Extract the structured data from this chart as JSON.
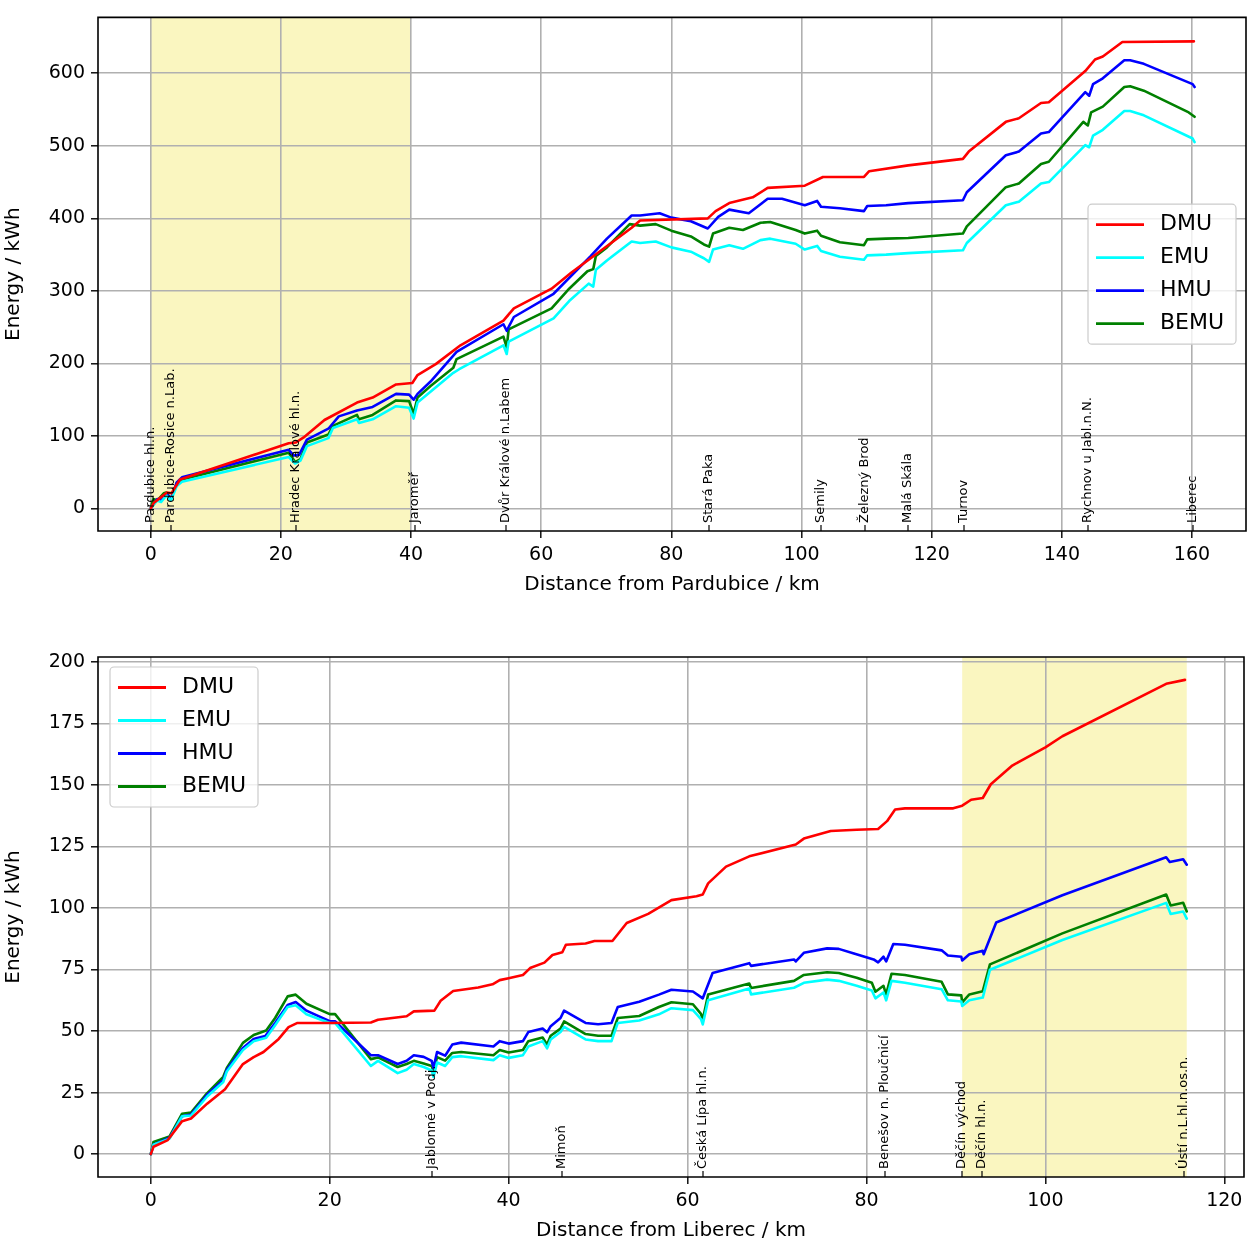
{
  "chart_data": [
    {
      "type": "line",
      "xlabel": "Distance from Pardubice / km",
      "ylabel": "Energy / kWh",
      "xlim": [
        -8.1,
        168.3
      ],
      "ylim": [
        -31,
        677
      ],
      "xticks": [
        0,
        20,
        40,
        60,
        80,
        100,
        120,
        140,
        160
      ],
      "yticks": [
        0,
        100,
        200,
        300,
        400,
        500,
        600
      ],
      "grid": true,
      "legend": "center right",
      "bands": [
        {
          "axis": "x",
          "from": 0,
          "to": 40,
          "color": "#faf6c0"
        }
      ],
      "annotations": [
        "Pardubice hl.n.",
        "Pardubice-Rosice n.Lab.",
        "Hradec Králové hl.n.",
        "Jaroměř",
        "Dvůr Králové n.Labem",
        "Stará Paka",
        "Semily",
        "Železný Brod",
        "Malá Skála",
        "Turnov",
        "Rychnov u Jabl.n.N.",
        "Liberec"
      ],
      "series": [
        {
          "name": "DMU",
          "color": "#ff0000",
          "x": [
            0,
            0.5,
            1.5,
            2.5,
            3.2,
            4.5,
            21.2,
            22.3,
            23.5,
            26.7,
            31.7,
            34.1,
            37.7,
            40.2,
            41,
            43.8,
            47.6,
            54.2,
            55.8,
            61.6,
            64.6,
            73.9,
            75.2,
            85.6,
            86.8,
            88.9,
            92.5,
            94.8,
            100.5,
            103.3,
            109.6,
            110.4,
            116.4,
            124.8,
            125.7,
            131.4,
            133.4,
            136.8,
            138,
            143.6,
            145.1,
            146.3,
            149.3,
            160.3
          ],
          "values": [
            0,
            8,
            15,
            22,
            21,
            40,
            90,
            91,
            98,
            122,
            146,
            153,
            171,
            173,
            184,
            199,
            225,
            259,
            276,
            303,
            325,
            387,
            397,
            400,
            410,
            421,
            429,
            442,
            445,
            457,
            457,
            465,
            473,
            482,
            492,
            533,
            538,
            559,
            560,
            603,
            619,
            623,
            643,
            644
          ]
        },
        {
          "name": "EMU",
          "color": "#00ffff",
          "x": [
            0,
            1,
            1.6,
            2.4,
            3.1,
            4,
            4.8,
            21.2,
            22.2,
            23,
            24,
            27.3,
            28,
            31.7,
            32,
            34.1,
            37.7,
            39.7,
            40.4,
            41,
            46.5,
            47.4,
            54.2,
            54.7,
            55,
            61.9,
            64.3,
            67.3,
            68,
            68.4,
            70.1,
            73.9,
            75.2,
            77.6,
            80,
            83,
            85,
            85.8,
            86.4,
            88.9,
            91,
            93.7,
            95.2,
            99.1,
            100.5,
            102.4,
            103,
            105.9,
            109.6,
            110.1,
            113,
            116.4,
            124.8,
            125.4,
            131.4,
            133.4,
            136.8,
            138,
            143.6,
            144.2,
            144.8,
            146.3,
            149.6,
            150.5,
            152.6,
            160.1,
            160.4
          ],
          "values": [
            0,
            11,
            9,
            18,
            11,
            31,
            37,
            71,
            62,
            66,
            86,
            97,
            111,
            123,
            118,
            123,
            141,
            139,
            124,
            146,
            187,
            192,
            225,
            213,
            230,
            262,
            286,
            310,
            306,
            329,
            342,
            368,
            366,
            368,
            360,
            354,
            345,
            340,
            357,
            363,
            358,
            370,
            372,
            365,
            357,
            362,
            355,
            347,
            343,
            349,
            350,
            352,
            356,
            366,
            418,
            423,
            448,
            450,
            501,
            498,
            514,
            522,
            548,
            548,
            542,
            510,
            505
          ]
        },
        {
          "name": "HMU",
          "color": "#0000ff",
          "x": [
            0,
            1,
            1.6,
            2.4,
            3.1,
            4,
            4.8,
            21.2,
            22,
            22.8,
            24,
            27.3,
            28.9,
            31.7,
            34.1,
            37.7,
            39.7,
            40.4,
            41,
            43,
            47,
            54.2,
            54.7,
            55.8,
            61.9,
            67.6,
            70.1,
            73.9,
            75.2,
            78.2,
            80,
            83,
            85.6,
            87.2,
            88.9,
            91.9,
            94.8,
            97,
            100.5,
            102.4,
            103,
            105.9,
            109.6,
            110.1,
            113,
            116.4,
            124.8,
            125.4,
            131.4,
            133.4,
            136.8,
            138,
            143.6,
            144.2,
            144.8,
            146.3,
            149.6,
            150.5,
            152.6,
            160.1,
            160.4
          ],
          "values": [
            0,
            13,
            11,
            21,
            13,
            36,
            43,
            81,
            73,
            74,
            95,
            110,
            127,
            135,
            140,
            158,
            157,
            150,
            158,
            175,
            216,
            254,
            245,
            264,
            296,
            348,
            372,
            404,
            404,
            407,
            401,
            396,
            386,
            402,
            412,
            407,
            427,
            427,
            418,
            424,
            416,
            414,
            410,
            417,
            418,
            421,
            425,
            436,
            487,
            492,
            517,
            519,
            574,
            569,
            585,
            593,
            618,
            618,
            613,
            585,
            581
          ]
        },
        {
          "name": "BEMU",
          "color": "#008000",
          "x": [
            0,
            0.4,
            1,
            2,
            2.4,
            3.1,
            4,
            4.8,
            21.2,
            22.2,
            23,
            24,
            27.3,
            28,
            31.7,
            32,
            34.1,
            37.7,
            39.7,
            40.4,
            41,
            43,
            46.5,
            47,
            54.2,
            54.7,
            55,
            61.6,
            64.3,
            67.1,
            68,
            68.4,
            70.1,
            73.6,
            75.2,
            77.6,
            80,
            83,
            85,
            85.8,
            86.4,
            88.9,
            91,
            93.7,
            95.2,
            99.1,
            100.5,
            102.4,
            103,
            105.9,
            109.6,
            110.1,
            113,
            116.4,
            124.8,
            125.4,
            131.4,
            133.4,
            136.8,
            138,
            143.3,
            144,
            144.5,
            146.3,
            149.6,
            150.5,
            152.6,
            159.5,
            160.4
          ],
          "values": [
            0,
            13,
            11,
            21,
            22,
            13,
            35,
            40,
            77,
            64,
            68,
            91,
            102,
            114,
            129,
            123,
            129,
            149,
            148,
            131,
            153,
            169,
            194,
            206,
            237,
            222,
            247,
            276,
            303,
            327,
            330,
            348,
            360,
            392,
            390,
            392,
            383,
            375,
            364,
            361,
            379,
            387,
            384,
            394,
            395,
            384,
            379,
            383,
            376,
            367,
            363,
            371,
            372,
            373,
            379,
            389,
            443,
            448,
            475,
            478,
            533,
            528,
            546,
            554,
            581,
            582,
            576,
            546,
            540
          ]
        }
      ]
    },
    {
      "type": "line",
      "xlabel": "Distance from Liberec / km",
      "ylabel": "Energy / kWh",
      "xlim": [
        -5.9,
        122.2
      ],
      "ylim": [
        -9.3,
        202
      ],
      "xticks": [
        0,
        20,
        40,
        60,
        80,
        100,
        120
      ],
      "yticks": [
        0,
        25,
        50,
        75,
        100,
        125,
        150,
        175,
        200
      ],
      "grid": true,
      "legend": "top left",
      "bands": [
        {
          "axis": "x",
          "from": 90.7,
          "to": 115.8,
          "color": "#faf6c0"
        }
      ],
      "annotations": [
        "Jablonné v Podj.",
        "Mimoň",
        "Česká Lípa hl.n.",
        "Benešov n. Ploučnicí",
        "Děčín východ",
        "Děčín hl.n.",
        "Ústí n.L.hl.n.os.n."
      ],
      "series": [
        {
          "name": "DMU",
          "color": "#ff0000",
          "x": [
            0,
            0.3,
            1.9,
            3.5,
            4.5,
            6.3,
            8.3,
            10.3,
            11.5,
            12.6,
            14.3,
            15.4,
            16.4,
            20.2,
            24.6,
            25.4,
            28.6,
            29.4,
            31.7,
            32.4,
            33.8,
            36.6,
            38.2,
            39,
            40,
            41.6,
            42.4,
            44,
            44.9,
            46,
            46.4,
            48.6,
            49.6,
            51.6,
            53.2,
            55.6,
            58.2,
            61,
            61.7,
            62.3,
            64.3,
            66.9,
            72.1,
            73,
            76,
            78.9,
            81.3,
            82.3,
            83.2,
            84.3,
            89.7,
            90.7,
            91.7,
            93,
            93.9,
            96.3,
            100,
            101.9,
            113.5,
            115.6
          ],
          "values": [
            0,
            3,
            5.7,
            13.4,
            14.5,
            20.5,
            26.4,
            36.6,
            39.4,
            41.5,
            46.8,
            51.6,
            53.3,
            53.3,
            53.5,
            54.6,
            56,
            58,
            58.3,
            62.3,
            66.3,
            67.7,
            69,
            70.7,
            71.5,
            72.8,
            75.6,
            77.8,
            80.9,
            82,
            85.1,
            85.6,
            86.6,
            86.6,
            93.9,
            97.6,
            103.2,
            104.8,
            105.5,
            110,
            116.8,
            121,
            125.8,
            128.2,
            131.3,
            131.8,
            132.1,
            135.3,
            140,
            140.5,
            140.5,
            141.6,
            144,
            144.7,
            150.3,
            157.9,
            165.3,
            169.8,
            191.1,
            192.7
          ]
        },
        {
          "name": "EMU",
          "color": "#00ffff",
          "x": [
            0,
            0.3,
            2.1,
            3.5,
            4.5,
            6.3,
            8.1,
            8.5,
            10.3,
            11.5,
            12.9,
            13.9,
            15.3,
            16.2,
            17.4,
            20,
            20.6,
            24.6,
            25.4,
            27.6,
            28.6,
            29.4,
            30.5,
            31.4,
            31.6,
            32,
            32.9,
            33.7,
            34.7,
            38.3,
            39,
            40,
            41.6,
            42.2,
            43.8,
            44.3,
            44.7,
            45.8,
            46.2,
            48.6,
            50,
            51.5,
            52.2,
            54.6,
            56.8,
            58.2,
            60.6,
            61.5,
            61.7,
            62.3,
            66.9,
            67.1,
            71.9,
            73,
            75.6,
            76.9,
            78.9,
            80.6,
            81,
            81.9,
            82.2,
            82.8,
            84.3,
            88.4,
            89.1,
            90.6,
            90.7,
            91.5,
            93,
            93.8,
            101.9,
            113.5,
            114,
            115.4,
            115.8
          ],
          "values": [
            0,
            3.8,
            6.3,
            15.4,
            15.7,
            23.4,
            29.3,
            33.6,
            42.3,
            45.9,
            47.3,
            52.4,
            59.8,
            60.5,
            56.8,
            53.3,
            53.3,
            35.8,
            37.9,
            32.9,
            34.3,
            36.6,
            35.4,
            34,
            31.4,
            37.2,
            35.8,
            39.4,
            39.8,
            38.2,
            40.2,
            39.1,
            40.2,
            43.7,
            45.9,
            43,
            46.6,
            49.6,
            51.7,
            46.6,
            45.9,
            45.9,
            53.3,
            54.3,
            56.8,
            59.3,
            58.5,
            54.9,
            52.7,
            62.5,
            67.3,
            64.9,
            67.6,
            69.6,
            70.9,
            70.4,
            68.4,
            66.5,
            63.3,
            65.7,
            62.5,
            70.4,
            69.6,
            67,
            62.5,
            62,
            60.2,
            62.5,
            63.6,
            74.9,
            87,
            102.1,
            97.6,
            98.6,
            95.7
          ]
        },
        {
          "name": "HMU",
          "color": "#0000ff",
          "x": [
            0,
            0.3,
            2.1,
            3.5,
            4.5,
            6.3,
            8.1,
            8.5,
            10.3,
            11.5,
            12.8,
            13.9,
            15.3,
            16.2,
            17.4,
            20,
            20.6,
            24.6,
            25.4,
            27.6,
            28.6,
            29.4,
            30.5,
            31.4,
            31.6,
            32,
            32.9,
            33.7,
            34.7,
            38.3,
            39,
            40,
            41.6,
            42.2,
            43.8,
            44.3,
            44.7,
            45.8,
            46.2,
            48.6,
            50,
            51.5,
            52.2,
            54.6,
            56.8,
            58.2,
            60.6,
            61.7,
            62.8,
            66.9,
            67.1,
            71.9,
            72.1,
            73,
            75.6,
            76.9,
            78.6,
            80.8,
            81.3,
            81.9,
            82.2,
            83,
            84.3,
            88.4,
            89.1,
            90.6,
            90.7,
            91.5,
            93,
            93.1,
            94.5,
            101.9,
            113.5,
            113.9,
            115.4,
            115.8
          ],
          "values": [
            0,
            3.8,
            6.7,
            15.4,
            16.1,
            24.1,
            30,
            34.3,
            43.1,
            46.8,
            48,
            53.3,
            60.6,
            61.8,
            58.3,
            54,
            54,
            40.2,
            40.2,
            36.6,
            37.9,
            40.2,
            39.5,
            37.9,
            35,
            41.5,
            40,
            44.5,
            45.3,
            43.7,
            45.9,
            44.9,
            45.9,
            49.6,
            51,
            49.5,
            52,
            55.3,
            58.3,
            53.3,
            52.8,
            53.3,
            59.8,
            61.9,
            64.8,
            66.8,
            66.1,
            63.3,
            73.6,
            77.6,
            76.5,
            79.1,
            78.3,
            81.8,
            83.6,
            83.4,
            81.5,
            79.1,
            77.9,
            80.2,
            78.3,
            85.4,
            85.1,
            82.8,
            80.7,
            80.2,
            78.7,
            81.2,
            82.6,
            81.2,
            94.1,
            105.2,
            120.6,
            118.7,
            119.8,
            117.6
          ]
        },
        {
          "name": "BEMU",
          "color": "#008000",
          "x": [
            0,
            0.3,
            2.1,
            3.5,
            4.5,
            6.3,
            8.1,
            8.5,
            10.3,
            11.5,
            12.9,
            13.9,
            15.3,
            16.2,
            17.4,
            20,
            20.6,
            24.6,
            25.4,
            27.6,
            28.6,
            29.4,
            30.5,
            31.4,
            31.6,
            32,
            32.9,
            33.7,
            34.7,
            38.3,
            39,
            40,
            41.6,
            42.2,
            43.8,
            44.3,
            44.7,
            45.8,
            46.2,
            48.6,
            50,
            51.5,
            52.2,
            54.6,
            56.8,
            58.2,
            60.6,
            61.5,
            61.7,
            62.3,
            66.9,
            67.1,
            71.9,
            73,
            75.6,
            76.9,
            78.9,
            80.6,
            81,
            81.9,
            82.2,
            82.8,
            84.3,
            88.4,
            89.1,
            90.6,
            90.7,
            91.5,
            93,
            93.8,
            101.9,
            113.5,
            114,
            115.4,
            115.8
          ],
          "values": [
            0,
            4.9,
            7.2,
            16.4,
            16.9,
            24.8,
            31.4,
            35,
            45.2,
            48.4,
            50.2,
            55.3,
            64.1,
            64.8,
            61.1,
            56.9,
            56.9,
            38.6,
            39.3,
            35.4,
            36.6,
            37.9,
            36.8,
            35.8,
            33.7,
            39.4,
            38,
            41.1,
            41.5,
            40.2,
            42.3,
            41.3,
            42.3,
            45.9,
            47.4,
            44.5,
            48.1,
            51,
            53.9,
            48.8,
            48.1,
            48.1,
            55.3,
            56.1,
            59.8,
            61.7,
            60.9,
            57,
            54.6,
            64.9,
            69.3,
            67.5,
            70.4,
            72.8,
            73.9,
            73.6,
            71.7,
            69.6,
            66,
            68.4,
            64.9,
            73.3,
            72.8,
            70,
            64.9,
            64.5,
            61.7,
            64.9,
            66.2,
            77.1,
            89.7,
            105.5,
            101,
            102.1,
            98.6
          ]
        }
      ]
    }
  ]
}
